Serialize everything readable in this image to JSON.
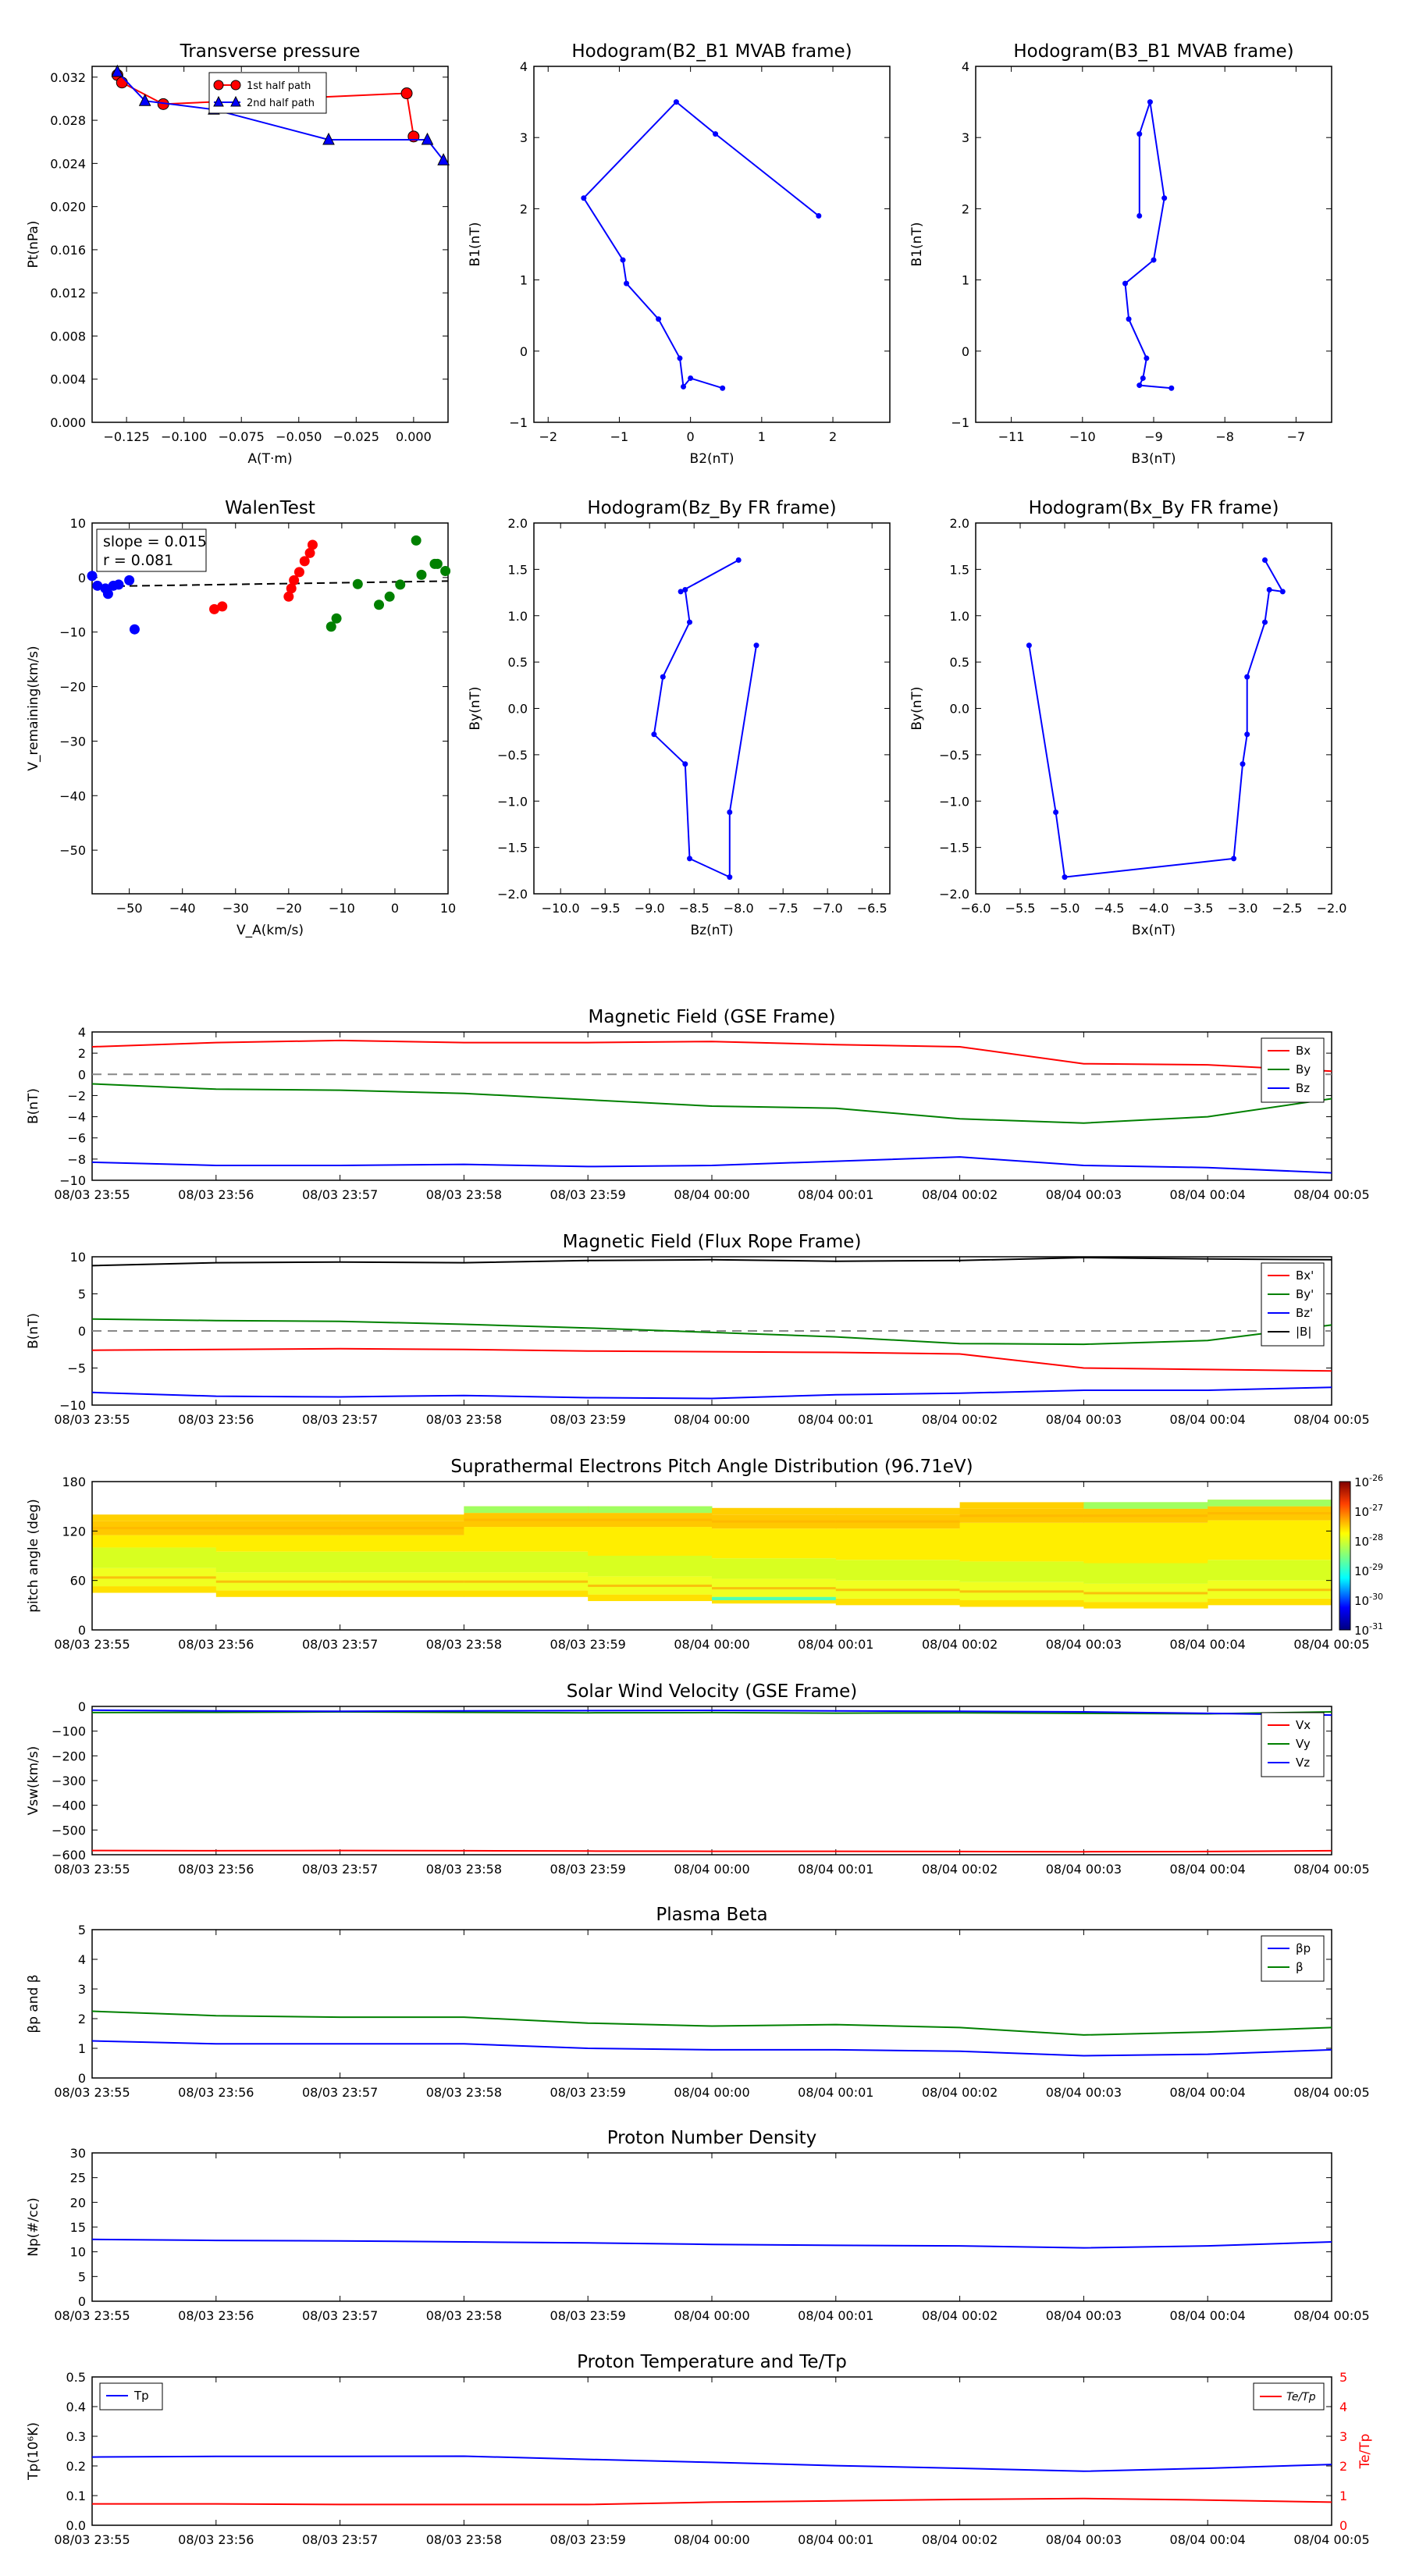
{
  "time_ticks": [
    "08/03 23:55",
    "08/03 23:56",
    "08/03 23:57",
    "08/03 23:58",
    "08/03 23:59",
    "08/04 00:00",
    "08/04 00:01",
    "08/04 00:02",
    "08/04 00:03",
    "08/04 00:04",
    "08/04 00:05"
  ],
  "chart_data": [
    {
      "id": "pt",
      "type": "line",
      "title": "Transverse pressure",
      "xlabel": "A(T·m)",
      "ylabel": "Pt(nPa)",
      "xlim": [
        -0.14,
        0.015
      ],
      "ylim": [
        0.0,
        0.033
      ],
      "xticks": [
        -0.125,
        -0.1,
        -0.075,
        -0.05,
        -0.025,
        0.0
      ],
      "xtick_labels": [
        "−0.125",
        "−0.100",
        "−0.075",
        "−0.050",
        "−0.025",
        "0.000"
      ],
      "yticks": [
        0,
        0.004,
        0.008,
        0.012,
        0.016,
        0.02,
        0.024,
        0.028,
        0.032
      ],
      "ytick_labels": [
        "0.000",
        "0.004",
        "0.008",
        "0.012",
        "0.016",
        "0.020",
        "0.024",
        "0.028",
        "0.032"
      ],
      "legend": "top-center",
      "series": [
        {
          "name": "1st half path",
          "color": "#ff0000",
          "marker": "circle",
          "x": [
            -0.129,
            -0.127,
            -0.109,
            -0.003,
            0.0
          ],
          "y": [
            0.0322,
            0.0315,
            0.0295,
            0.0305,
            0.0265
          ]
        },
        {
          "name": "2nd half path",
          "color": "#0000ff",
          "marker": "triangle",
          "x": [
            -0.129,
            -0.117,
            -0.087,
            -0.037,
            0.006,
            0.013
          ],
          "y": [
            0.0325,
            0.0298,
            0.029,
            0.0262,
            0.0262,
            0.0243
          ]
        }
      ]
    },
    {
      "id": "h1",
      "type": "line",
      "title": "Hodogram(B2_B1 MVAB frame)",
      "xlabel": "B2(nT)",
      "ylabel": "B1(nT)",
      "xlim": [
        -2.2,
        2.8
      ],
      "ylim": [
        -1,
        4
      ],
      "xticks": [
        -2,
        -1,
        0,
        1,
        2
      ],
      "yticks": [
        -1,
        0,
        1,
        2,
        3,
        4
      ],
      "xtick_labels": [
        "−2",
        "−1",
        "0",
        "1",
        "2"
      ],
      "ytick_labels": [
        "−1",
        "0",
        "1",
        "2",
        "3",
        "4"
      ],
      "series": [
        {
          "name": "",
          "color": "#0000ff",
          "marker": "dot",
          "x": [
            1.8,
            0.35,
            -0.2,
            -1.5,
            -0.95,
            -0.9,
            -0.45,
            -0.15,
            -0.1,
            0.0,
            0.45
          ],
          "y": [
            1.9,
            3.05,
            3.5,
            2.15,
            1.28,
            0.95,
            0.45,
            -0.1,
            -0.5,
            -0.38,
            -0.52
          ]
        }
      ]
    },
    {
      "id": "h2",
      "type": "line",
      "title": "Hodogram(B3_B1 MVAB frame)",
      "xlabel": "B3(nT)",
      "ylabel": "B1(nT)",
      "xlim": [
        -11.5,
        -6.5
      ],
      "ylim": [
        -1,
        4
      ],
      "xticks": [
        -11,
        -10,
        -9,
        -8,
        -7
      ],
      "yticks": [
        -1,
        0,
        1,
        2,
        3,
        4
      ],
      "xtick_labels": [
        "−11",
        "−10",
        "−9",
        "−8",
        "−7"
      ],
      "ytick_labels": [
        "−1",
        "0",
        "1",
        "2",
        "3",
        "4"
      ],
      "series": [
        {
          "name": "",
          "color": "#0000ff",
          "marker": "dot",
          "x": [
            -9.2,
            -9.2,
            -9.05,
            -8.85,
            -9.0,
            -9.4,
            -9.35,
            -9.1,
            -9.15,
            -9.2,
            -8.75
          ],
          "y": [
            1.9,
            3.05,
            3.5,
            2.15,
            1.28,
            0.95,
            0.45,
            -0.1,
            -0.38,
            -0.48,
            -0.52
          ]
        }
      ]
    },
    {
      "id": "walen",
      "type": "scatter",
      "title": "WalenTest",
      "xlabel": "V_A(km/s)",
      "ylabel": "V_remaining(km/s)",
      "xlim": [
        -57,
        10
      ],
      "ylim": [
        -58,
        10
      ],
      "xticks": [
        -50,
        -40,
        -30,
        -20,
        -10,
        0,
        10
      ],
      "yticks": [
        -50,
        -40,
        -30,
        -20,
        -10,
        0,
        10
      ],
      "xtick_labels": [
        "−50",
        "−40",
        "−30",
        "−20",
        "−10",
        "0",
        "10"
      ],
      "ytick_labels": [
        "−50",
        "−40",
        "−30",
        "−20",
        "−10",
        "0",
        "10"
      ],
      "annotation": [
        "slope = 0.015",
        "r = 0.081"
      ],
      "fit_line": {
        "slope": 0.015,
        "intercept": -0.8
      },
      "series": [
        {
          "name": "",
          "color": "#0000ff",
          "x": [
            -57,
            -56,
            -54.5,
            -54,
            -53,
            -52,
            -50,
            -49
          ],
          "y": [
            0.3,
            -1.5,
            -2,
            -3,
            -1.5,
            -1.3,
            -0.5,
            -9.5
          ]
        },
        {
          "name": "",
          "color": "#ff0000",
          "x": [
            -34,
            -32.5,
            -20,
            -19.5,
            -19,
            -18,
            -17,
            -16,
            -15.5
          ],
          "y": [
            -5.8,
            -5.3,
            -3.5,
            -2,
            -0.5,
            1,
            3,
            4.5,
            6
          ]
        },
        {
          "name": "",
          "color": "#008000",
          "x": [
            -12,
            -11,
            -7,
            -3,
            -1,
            1,
            4,
            5,
            7.5,
            8,
            9.5
          ],
          "y": [
            -9,
            -7.5,
            -1.2,
            -5,
            -3.5,
            -1.3,
            6.8,
            0.5,
            2.5,
            2.5,
            1.2
          ]
        }
      ]
    },
    {
      "id": "h3",
      "type": "line",
      "title": "Hodogram(Bz_By FR frame)",
      "xlabel": "Bz(nT)",
      "ylabel": "By(nT)",
      "xlim": [
        -10.3,
        -6.3
      ],
      "ylim": [
        -2.0,
        2.0
      ],
      "xticks": [
        -10,
        -9.5,
        -9,
        -8.5,
        -8,
        -7.5,
        -7,
        -6.5
      ],
      "xtick_labels": [
        "−10.0",
        "−9.5",
        "−9.0",
        "−8.5",
        "−8.0",
        "−7.5",
        "−7.0",
        "−6.5"
      ],
      "yticks": [
        -2,
        -1.5,
        -1,
        -0.5,
        0,
        0.5,
        1,
        1.5,
        2
      ],
      "ytick_labels": [
        "−2.0",
        "−1.5",
        "−1.0",
        "−0.5",
        "0.0",
        "0.5",
        "1.0",
        "1.5",
        "2.0"
      ],
      "series": [
        {
          "name": "",
          "color": "#0000ff",
          "marker": "dot",
          "x": [
            -7.8,
            -8.1,
            -8.1,
            -8.55,
            -8.6,
            -8.95,
            -8.85,
            -8.55,
            -8.6,
            -8.65,
            -8.0
          ],
          "y": [
            0.68,
            -1.12,
            -1.82,
            -1.62,
            -0.6,
            -0.28,
            0.34,
            0.93,
            1.28,
            1.26,
            1.6
          ]
        }
      ]
    },
    {
      "id": "h4",
      "type": "line",
      "title": "Hodogram(Bx_By FR frame)",
      "xlabel": "Bx(nT)",
      "ylabel": "By(nT)",
      "xlim": [
        -6.0,
        -2.0
      ],
      "ylim": [
        -2.0,
        2.0
      ],
      "xticks": [
        -6,
        -5.5,
        -5,
        -4.5,
        -4,
        -3.5,
        -3,
        -2.5,
        -2
      ],
      "xtick_labels": [
        "−6.0",
        "−5.5",
        "−5.0",
        "−4.5",
        "−4.0",
        "−3.5",
        "−3.0",
        "−2.5",
        "−2.0"
      ],
      "yticks": [
        -2,
        -1.5,
        -1,
        -0.5,
        0,
        0.5,
        1,
        1.5,
        2
      ],
      "ytick_labels": [
        "−2.0",
        "−1.5",
        "−1.0",
        "−0.5",
        "0.0",
        "0.5",
        "1.0",
        "1.5",
        "2.0"
      ],
      "series": [
        {
          "name": "",
          "color": "#0000ff",
          "marker": "dot",
          "x": [
            -5.4,
            -5.1,
            -5.0,
            -3.1,
            -3.0,
            -2.95,
            -2.95,
            -2.75,
            -2.7,
            -2.55,
            -2.75
          ],
          "y": [
            0.68,
            -1.12,
            -1.82,
            -1.62,
            -0.6,
            -0.28,
            0.34,
            0.93,
            1.28,
            1.26,
            1.6
          ]
        }
      ]
    },
    {
      "id": "bgse",
      "type": "line",
      "title": "Magnetic Field (GSE Frame)",
      "ylabel": "B(nT)",
      "ylim": [
        -10,
        4
      ],
      "yticks": [
        -10,
        -8,
        -6,
        -4,
        -2,
        0,
        2,
        4
      ],
      "ytick_labels": [
        "−10",
        "−8",
        "−6",
        "−4",
        "−2",
        "0",
        "2",
        "4"
      ],
      "legend": "top-right",
      "zero_line": true,
      "x": [
        0,
        1,
        2,
        3,
        4,
        5,
        6,
        7,
        8,
        9,
        10
      ],
      "series": [
        {
          "name": "Bx",
          "color": "#ff0000",
          "values": [
            2.6,
            3.0,
            3.2,
            3.0,
            3.0,
            3.1,
            2.8,
            2.6,
            1.0,
            0.9,
            0.3
          ]
        },
        {
          "name": "By",
          "color": "#008000",
          "values": [
            -0.9,
            -1.4,
            -1.5,
            -1.8,
            -2.4,
            -3.0,
            -3.2,
            -4.2,
            -4.6,
            -4.0,
            -2.3
          ]
        },
        {
          "name": "Bz",
          "color": "#0000ff",
          "values": [
            -8.3,
            -8.6,
            -8.6,
            -8.5,
            -8.7,
            -8.6,
            -8.2,
            -7.8,
            -8.6,
            -8.8,
            -9.3
          ]
        }
      ]
    },
    {
      "id": "bfr",
      "type": "line",
      "title": "Magnetic Field (Flux Rope Frame)",
      "ylabel": "B(nT)",
      "ylim": [
        -10,
        10
      ],
      "yticks": [
        -10,
        -5,
        0,
        5,
        10
      ],
      "ytick_labels": [
        "−10",
        "−5",
        "0",
        "5",
        "10"
      ],
      "legend": "top-right",
      "zero_line": true,
      "x": [
        0,
        1,
        2,
        3,
        4,
        5,
        6,
        7,
        8,
        9,
        10
      ],
      "series": [
        {
          "name": "Bx'",
          "color": "#ff0000",
          "values": [
            -2.6,
            -2.5,
            -2.4,
            -2.5,
            -2.7,
            -2.8,
            -2.9,
            -3.1,
            -5.0,
            -5.2,
            -5.4
          ]
        },
        {
          "name": "By'",
          "color": "#008000",
          "values": [
            1.6,
            1.4,
            1.3,
            0.9,
            0.4,
            -0.2,
            -0.8,
            -1.7,
            -1.8,
            -1.3,
            0.8
          ]
        },
        {
          "name": "Bz'",
          "color": "#0000ff",
          "values": [
            -8.3,
            -8.8,
            -8.9,
            -8.7,
            -9.0,
            -9.1,
            -8.6,
            -8.4,
            -8.0,
            -8.0,
            -7.6
          ]
        },
        {
          "name": "|B|",
          "color": "#000000",
          "values": [
            8.8,
            9.2,
            9.3,
            9.2,
            9.5,
            9.6,
            9.4,
            9.5,
            9.9,
            9.7,
            9.6
          ]
        }
      ]
    },
    {
      "id": "pad",
      "type": "heatmap",
      "title": "Suprathermal Electrons Pitch Angle Distribution (96.71eV)",
      "ylabel": "pitch angle (deg)",
      "ylim": [
        0,
        180
      ],
      "yticks": [
        0,
        60,
        120,
        180
      ],
      "ytick_labels": [
        "0",
        "60",
        "120",
        "180"
      ],
      "colorbar_ticks": [
        "10-26",
        "10-27",
        "10-28",
        "10-29",
        "10-30",
        "10-31"
      ],
      "colorbar_exponents": [
        "-26",
        "-27",
        "-28",
        "-29",
        "-30",
        "-31"
      ],
      "time_bins": 10,
      "band_low": [
        45,
        40,
        40,
        40,
        35,
        32,
        30,
        28,
        26,
        30
      ],
      "band_high": [
        140,
        140,
        140,
        150,
        150,
        148,
        148,
        155,
        155,
        158
      ],
      "cool_top": [
        false,
        false,
        false,
        true,
        true,
        false,
        false,
        false,
        true,
        true
      ]
    },
    {
      "id": "vsw",
      "type": "line",
      "title": "Solar Wind Velocity (GSE Frame)",
      "ylabel": "Vsw(km/s)",
      "ylim": [
        -600,
        0
      ],
      "yticks": [
        -600,
        -500,
        -400,
        -300,
        -200,
        -100,
        0
      ],
      "ytick_labels": [
        "−600",
        "−500",
        "−400",
        "−300",
        "−200",
        "−100",
        "0"
      ],
      "legend": "top-right",
      "x": [
        0,
        1,
        2,
        3,
        4,
        5,
        6,
        7,
        8,
        9,
        10
      ],
      "series": [
        {
          "name": "Vx",
          "color": "#ff0000",
          "values": [
            -583,
            -584,
            -583,
            -584,
            -585,
            -586,
            -586,
            -587,
            -588,
            -587,
            -584
          ]
        },
        {
          "name": "Vy",
          "color": "#008000",
          "values": [
            -25,
            -24,
            -22,
            -24,
            -26,
            -25,
            -27,
            -26,
            -28,
            -30,
            -22
          ]
        },
        {
          "name": "Vz",
          "color": "#0000ff",
          "values": [
            -15,
            -18,
            -20,
            -18,
            -17,
            -16,
            -18,
            -20,
            -22,
            -28,
            -35
          ]
        }
      ]
    },
    {
      "id": "beta",
      "type": "line",
      "title": "Plasma Beta",
      "ylabel": "βp and β",
      "ylim": [
        0,
        5
      ],
      "yticks": [
        0,
        1,
        2,
        3,
        4,
        5
      ],
      "ytick_labels": [
        "0",
        "1",
        "2",
        "3",
        "4",
        "5"
      ],
      "legend": "top-right",
      "x": [
        0,
        1,
        2,
        3,
        4,
        5,
        6,
        7,
        8,
        9,
        10
      ],
      "series": [
        {
          "name": "βp",
          "color": "#0000ff",
          "values": [
            1.25,
            1.15,
            1.15,
            1.15,
            1.0,
            0.95,
            0.95,
            0.9,
            0.75,
            0.8,
            0.95
          ]
        },
        {
          "name": "β",
          "color": "#008000",
          "values": [
            2.25,
            2.1,
            2.05,
            2.05,
            1.85,
            1.75,
            1.8,
            1.7,
            1.45,
            1.55,
            1.7
          ]
        }
      ]
    },
    {
      "id": "np",
      "type": "line",
      "title": "Proton Number Density",
      "ylabel": "Np(#/cc)",
      "ylim": [
        0,
        30
      ],
      "yticks": [
        0,
        5,
        10,
        15,
        20,
        25,
        30
      ],
      "ytick_labels": [
        "0",
        "5",
        "10",
        "15",
        "20",
        "25",
        "30"
      ],
      "x": [
        0,
        1,
        2,
        3,
        4,
        5,
        6,
        7,
        8,
        9,
        10
      ],
      "series": [
        {
          "name": "",
          "color": "#0000ff",
          "values": [
            12.5,
            12.3,
            12.2,
            12.0,
            11.8,
            11.5,
            11.3,
            11.2,
            10.8,
            11.2,
            12.0
          ]
        }
      ]
    },
    {
      "id": "tp",
      "type": "line",
      "title": "Proton Temperature and Te/Tp",
      "ylabel": "Tp(10⁶K)",
      "ylim": [
        0,
        0.5
      ],
      "yticks": [
        0,
        0.1,
        0.2,
        0.3,
        0.4,
        0.5
      ],
      "ytick_labels": [
        "0.0",
        "0.1",
        "0.2",
        "0.3",
        "0.4",
        "0.5"
      ],
      "y2label": "Te/Tp",
      "y2lim": [
        0,
        5
      ],
      "y2ticks": [
        0,
        1,
        2,
        3,
        4,
        5
      ],
      "y2tick_labels": [
        "0",
        "1",
        "2",
        "3",
        "4",
        "5"
      ],
      "x": [
        0,
        1,
        2,
        3,
        4,
        5,
        6,
        7,
        8,
        9,
        10
      ],
      "series": [
        {
          "name": "Tp",
          "color": "#0000ff",
          "axis": "left",
          "values": [
            0.23,
            0.232,
            0.232,
            0.233,
            0.222,
            0.212,
            0.201,
            0.192,
            0.182,
            0.192,
            0.205
          ]
        },
        {
          "name": "Te/Tp",
          "color": "#ff0000",
          "axis": "right",
          "values": [
            0.72,
            0.72,
            0.7,
            0.7,
            0.7,
            0.78,
            0.82,
            0.87,
            0.9,
            0.85,
            0.78
          ]
        }
      ]
    }
  ]
}
